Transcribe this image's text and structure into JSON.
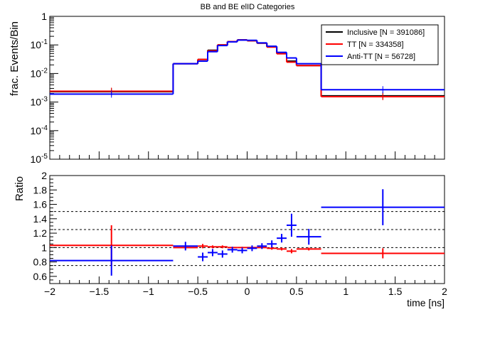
{
  "chart_data": [
    {
      "type": "line",
      "panel": "top",
      "title": "BB and BE elID Categories",
      "ylabel": "frac. Events/Bin",
      "yscale": "log",
      "ylim": [
        1e-05,
        1
      ],
      "xlim": [
        -2,
        2
      ],
      "y_tick_labels": [
        {
          "mant": "10",
          "exp": "-5"
        },
        {
          "mant": "10",
          "exp": "-4"
        },
        {
          "mant": "10",
          "exp": "-3"
        },
        {
          "mant": "10",
          "exp": "-2"
        },
        {
          "mant": "10",
          "exp": "-1"
        },
        {
          "mant": "1",
          "exp": ""
        }
      ],
      "bin_edges": [
        -2,
        -0.75,
        -0.5,
        -0.4,
        -0.3,
        -0.2,
        -0.1,
        0,
        0.1,
        0.2,
        0.3,
        0.4,
        0.5,
        0.75,
        2
      ],
      "legend": {
        "placement": "top-right"
      },
      "series": [
        {
          "name": "Inclusive [N = 391086]",
          "color": "#000000",
          "values": [
            0.0023,
            0.022,
            0.031,
            0.065,
            0.1,
            0.13,
            0.15,
            0.14,
            0.115,
            0.085,
            0.05,
            0.027,
            0.019,
            0.00165
          ]
        },
        {
          "name": "TT [N = 334358]",
          "color": "#ff0000",
          "values": [
            0.0024,
            0.022,
            0.031,
            0.062,
            0.1,
            0.131,
            0.15,
            0.14,
            0.116,
            0.084,
            0.049,
            0.025,
            0.019,
            0.00155
          ]
        },
        {
          "name": "Anti-TT [N = 56728]",
          "color": "#0000ff",
          "values": [
            0.0019,
            0.022,
            0.027,
            0.058,
            0.095,
            0.128,
            0.148,
            0.145,
            0.118,
            0.09,
            0.055,
            0.035,
            0.022,
            0.0027
          ]
        }
      ]
    },
    {
      "type": "scatter",
      "panel": "bottom",
      "ylabel": "Ratio",
      "xlabel": "time [ns]",
      "xlim": [
        -2,
        2
      ],
      "ylim": [
        0.5,
        2
      ],
      "y_ticks": [
        "0.6",
        "0.8",
        "1",
        "1.2",
        "1.4",
        "1.6",
        "1.8",
        "2"
      ],
      "x_ticks": [
        "−2",
        "−1.5",
        "−1",
        "−0.5",
        "0",
        "0.5",
        "1",
        "1.5",
        "2"
      ],
      "reference_lines": [
        0.75,
        1.0,
        1.25,
        1.5
      ],
      "series": [
        {
          "name": "TT",
          "color": "#ff0000",
          "points": [
            {
              "x": -1.375,
              "xlo": -2,
              "xhi": -0.75,
              "y": 1.03,
              "err": 0.28
            },
            {
              "x": -0.625,
              "xlo": -0.75,
              "xhi": -0.5,
              "y": 1.0,
              "err": 0.02
            },
            {
              "x": -0.45,
              "xlo": -0.5,
              "xhi": -0.4,
              "y": 1.02,
              "err": 0.03
            },
            {
              "x": -0.35,
              "xlo": -0.4,
              "xhi": -0.3,
              "y": 1.01,
              "err": 0.02
            },
            {
              "x": -0.25,
              "xlo": -0.3,
              "xhi": -0.2,
              "y": 1.01,
              "err": 0.02
            },
            {
              "x": -0.15,
              "xlo": -0.2,
              "xhi": -0.1,
              "y": 1.0,
              "err": 0.01
            },
            {
              "x": -0.05,
              "xlo": -0.1,
              "xhi": 0.0,
              "y": 1.0,
              "err": 0.01
            },
            {
              "x": 0.05,
              "xlo": 0.0,
              "xhi": 0.1,
              "y": 1.0,
              "err": 0.01
            },
            {
              "x": 0.15,
              "xlo": 0.1,
              "xhi": 0.2,
              "y": 1.0,
              "err": 0.01
            },
            {
              "x": 0.25,
              "xlo": 0.2,
              "xhi": 0.3,
              "y": 0.99,
              "err": 0.02
            },
            {
              "x": 0.35,
              "xlo": 0.3,
              "xhi": 0.4,
              "y": 0.98,
              "err": 0.02
            },
            {
              "x": 0.45,
              "xlo": 0.4,
              "xhi": 0.5,
              "y": 0.95,
              "err": 0.03
            },
            {
              "x": 0.625,
              "xlo": 0.5,
              "xhi": 0.75,
              "y": 0.98,
              "err": 0.02
            },
            {
              "x": 1.375,
              "xlo": 0.75,
              "xhi": 2.0,
              "y": 0.92,
              "err": 0.07
            }
          ]
        },
        {
          "name": "Anti-TT",
          "color": "#0000ff",
          "points": [
            {
              "x": -1.375,
              "xlo": -2,
              "xhi": -0.75,
              "y": 0.82,
              "err": 0.21
            },
            {
              "x": -0.625,
              "xlo": -0.75,
              "xhi": -0.5,
              "y": 1.02,
              "err": 0.06
            },
            {
              "x": -0.45,
              "xlo": -0.5,
              "xhi": -0.4,
              "y": 0.87,
              "err": 0.06
            },
            {
              "x": -0.35,
              "xlo": -0.4,
              "xhi": -0.3,
              "y": 0.93,
              "err": 0.05
            },
            {
              "x": -0.25,
              "xlo": -0.3,
              "xhi": -0.2,
              "y": 0.91,
              "err": 0.05
            },
            {
              "x": -0.15,
              "xlo": -0.2,
              "xhi": -0.1,
              "y": 0.97,
              "err": 0.04
            },
            {
              "x": -0.05,
              "xlo": -0.1,
              "xhi": 0.0,
              "y": 0.96,
              "err": 0.04
            },
            {
              "x": 0.05,
              "xlo": 0.0,
              "xhi": 0.1,
              "y": 0.99,
              "err": 0.04
            },
            {
              "x": 0.15,
              "xlo": 0.1,
              "xhi": 0.2,
              "y": 1.02,
              "err": 0.04
            },
            {
              "x": 0.25,
              "xlo": 0.2,
              "xhi": 0.3,
              "y": 1.05,
              "err": 0.05
            },
            {
              "x": 0.35,
              "xlo": 0.3,
              "xhi": 0.4,
              "y": 1.13,
              "err": 0.06
            },
            {
              "x": 0.45,
              "xlo": 0.4,
              "xhi": 0.5,
              "y": 1.31,
              "err": 0.16
            },
            {
              "x": 0.625,
              "xlo": 0.5,
              "xhi": 0.75,
              "y": 1.15,
              "err": 0.11
            },
            {
              "x": 1.375,
              "xlo": 0.75,
              "xhi": 2.0,
              "y": 1.56,
              "err": 0.25
            }
          ]
        }
      ]
    }
  ]
}
